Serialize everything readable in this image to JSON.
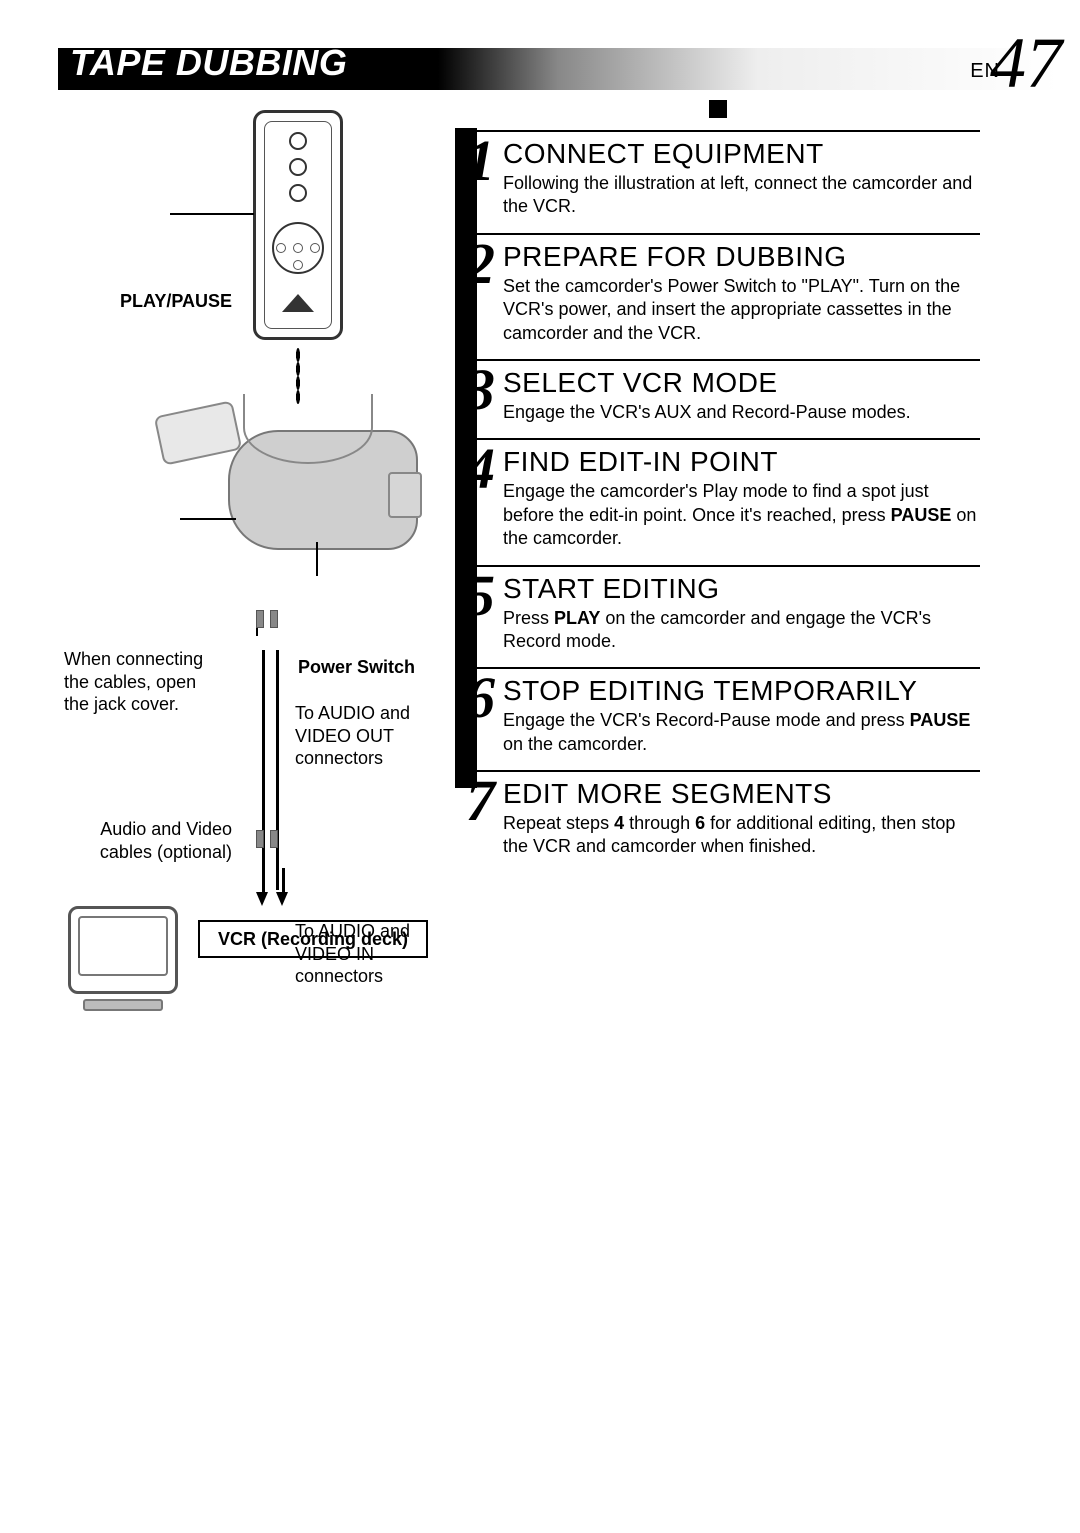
{
  "header": {
    "title": "TAPE DUBBING",
    "lang": "EN",
    "page_number": "47"
  },
  "diagram_labels": {
    "play_pause": "PLAY/PAUSE",
    "jack_cover_note": "When connecting the cables, open the jack cover.",
    "power_switch": "Power Switch",
    "to_audio_video_out": "To AUDIO and VIDEO OUT connectors",
    "cables_optional": "Audio and Video cables (optional)",
    "to_audio_video_in": "To AUDIO and VIDEO IN connectors",
    "vcr_label": "VCR (Recording deck)"
  },
  "steps": [
    {
      "num": "1",
      "title": "CONNECT EQUIPMENT",
      "body_html": "Following the illustration at left, connect the camcorder and the VCR."
    },
    {
      "num": "2",
      "title": "PREPARE FOR DUBBING",
      "body_html": "Set the camcorder's Power Switch to \"PLAY\". Turn on the VCR's power, and insert the appropriate cassettes in the camcorder and the VCR."
    },
    {
      "num": "3",
      "title": "SELECT VCR MODE",
      "body_html": "Engage the VCR's AUX and Record-Pause modes."
    },
    {
      "num": "4",
      "title": "FIND EDIT-IN POINT",
      "body_html": "Engage the camcorder's Play mode to find a spot just before the edit-in point. Once it's reached, press <b>PAUSE</b> on the camcorder."
    },
    {
      "num": "5",
      "title": "START EDITING",
      "body_html": "Press <b>PLAY</b> on the camcorder and engage the VCR's Record mode."
    },
    {
      "num": "6",
      "title": "STOP EDITING TEMPORARILY",
      "body_html": "Engage the VCR's Record-Pause mode and press <b>PAUSE</b> on the camcorder."
    },
    {
      "num": "7",
      "title": "EDIT MORE SEGMENTS",
      "body_html": "Repeat steps <b>4</b> through <b>6</b> for additional editing, then stop the VCR and camcorder when finished."
    }
  ],
  "style": {
    "header_gradient_from": "#000000",
    "header_gradient_to": "#ffffff",
    "step_title_fontsize": 28,
    "step_body_fontsize": 18,
    "step_num_fontsize": 58,
    "label_fontsize": 18,
    "page_num_fontsize": 72
  }
}
